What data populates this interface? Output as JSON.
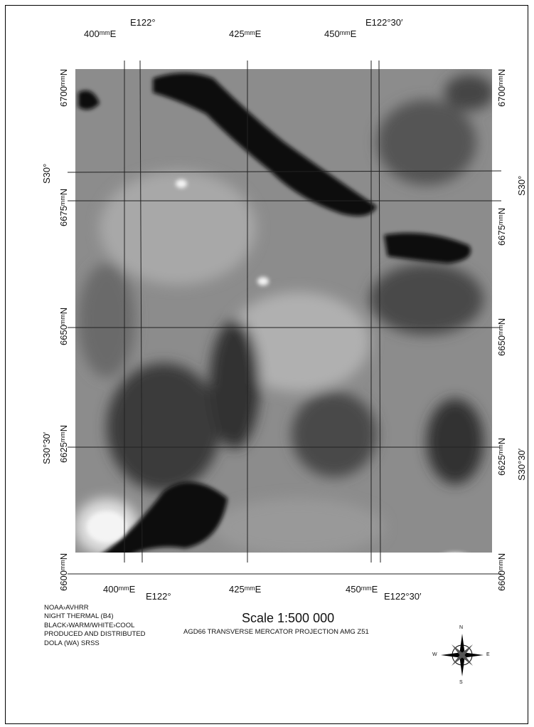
{
  "grid_labels": {
    "top": [
      "400ᵐᵐE",
      "E122°",
      "425ᵐᵐE",
      "450ᵐᵐE",
      "E122°30′"
    ],
    "bottom": [
      "400ᵐᵐE",
      "E122°",
      "425ᵐᵐE",
      "450ᵐᵐE",
      "E122°30′"
    ],
    "left": [
      "6700ᵐᵐN",
      "S30°",
      "6675ᵐᵐN",
      "6650ᵐᵐN",
      "6625ᵐᵐN",
      "S30°30′",
      "6600ᵐᵐN"
    ],
    "right": [
      "6700ᵐᵐN",
      "S30°",
      "6675ᵐᵐN",
      "6650ᵐᵐN",
      "6625ᵐᵐN",
      "S30°30′",
      "6600ᵐᵐN"
    ]
  },
  "legend": {
    "lines": [
      "NOAA›AVHRR",
      "NIGHT THERMAL (B4)",
      "BLACK›WARM/WHITE›COOL",
      "PRODUCED AND DISTRIBUTED",
      "DOLA (WA) SRSS"
    ]
  },
  "scale": "Scale 1:500 000",
  "projection": "AGD66 TRANSVERSE MERCATOR PROJECTION AMG Z51",
  "compass": {
    "n": "N",
    "s": "S",
    "e": "E",
    "w": "W"
  }
}
